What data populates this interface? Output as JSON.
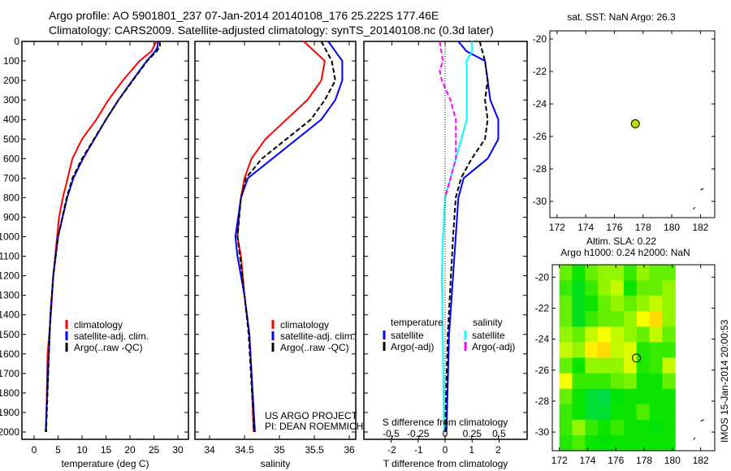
{
  "title_line1": "Argo profile: AO 5901801_237 07-Jan-2014 20140108_176 25.222S 177.46E",
  "title_line2": "Climatology: CARS2009. Satellite-adjusted climatology: synTS_20140108.nc (0.3d later)",
  "colors": {
    "clim": "#ff0000",
    "sat": "#0000ff",
    "argo": "#000000",
    "sal_sat": "#00ffff",
    "sal_argo": "#ff00ff"
  },
  "chart_data": [
    {
      "type": "line",
      "name": "temperature",
      "xlabel": "temperature (deg C)",
      "xlim": [
        -1,
        31
      ],
      "ylim": [
        2040,
        0
      ],
      "xticks": [
        0,
        5,
        10,
        15,
        20,
        25,
        30
      ],
      "yticks": [
        0,
        100,
        200,
        300,
        400,
        500,
        600,
        700,
        800,
        900,
        1000,
        1100,
        1200,
        1300,
        1400,
        1500,
        1600,
        1700,
        1800,
        1900,
        2000
      ],
      "legend": [
        "climatology",
        "satellite-adj. clim.",
        "Argo(..raw -QC)"
      ],
      "series": [
        {
          "name": "climatology",
          "color": "#ff0000",
          "depth": [
            0,
            50,
            100,
            200,
            300,
            400,
            500,
            600,
            700,
            800,
            900,
            1000,
            1200,
            1400,
            1600,
            2000
          ],
          "values": [
            25.5,
            24.5,
            22,
            18.5,
            15.5,
            13,
            10,
            8,
            7,
            6,
            5.2,
            4.8,
            4,
            3.5,
            2.8,
            2.5
          ]
        },
        {
          "name": "satellite-adj. clim.",
          "color": "#0000ff",
          "depth": [
            0,
            25,
            50,
            100,
            200,
            300,
            400,
            500,
            600,
            700,
            800,
            1000,
            1200,
            1400,
            2000
          ],
          "values": [
            25.8,
            25.8,
            25.3,
            23.5,
            20.5,
            17.6,
            15,
            12.6,
            10.2,
            8.2,
            6.9,
            5,
            4,
            3.4,
            2.4
          ]
        },
        {
          "name": "Argo(..raw -QC)",
          "color": "#000000",
          "dash": "6,3",
          "depth": [
            0,
            25,
            50,
            100,
            200,
            300,
            400,
            500,
            600,
            700,
            800,
            1000,
            1200,
            1400,
            2000
          ],
          "values": [
            26.2,
            26.3,
            25.6,
            23.6,
            20.6,
            17.6,
            15,
            12.5,
            10,
            8,
            6.8,
            5,
            4,
            3.4,
            2.5
          ]
        }
      ]
    },
    {
      "type": "line",
      "name": "salinity",
      "xlabel": "salinity",
      "xlim": [
        33.8,
        36.1
      ],
      "ylim": [
        2040,
        0
      ],
      "xticks": [
        34,
        34.5,
        35,
        35.5,
        36
      ],
      "xticklabels": [
        "34",
        "34.5",
        "35",
        "35.5",
        "36"
      ],
      "legend": [
        "climatology",
        "satellite-adj. clim.",
        "Argo(..raw -QC)"
      ],
      "annotation": [
        "US ARGO PROJECT",
        "PI: DEAN ROEMMICH"
      ],
      "series": [
        {
          "name": "climatology",
          "color": "#ff0000",
          "depth": [
            0,
            50,
            100,
            200,
            300,
            400,
            500,
            600,
            700,
            800,
            900,
            1000,
            1100,
            1300,
            1500,
            1700,
            2000
          ],
          "values": [
            35.35,
            35.5,
            35.65,
            35.6,
            35.4,
            35.1,
            34.8,
            34.6,
            34.5,
            34.45,
            34.42,
            34.4,
            34.45,
            34.5,
            34.57,
            34.6,
            34.63
          ]
        },
        {
          "name": "satellite-adj. clim.",
          "color": "#0000ff",
          "depth": [
            0,
            50,
            100,
            200,
            300,
            400,
            500,
            600,
            700,
            800,
            1000,
            1100,
            1300,
            1500,
            2000
          ],
          "values": [
            35.7,
            35.8,
            35.9,
            35.9,
            35.8,
            35.6,
            35.25,
            34.9,
            34.55,
            34.45,
            34.37,
            34.4,
            34.5,
            34.57,
            34.65
          ]
        },
        {
          "name": "Argo(..raw -QC)",
          "color": "#000000",
          "dash": "6,3",
          "depth": [
            0,
            100,
            200,
            300,
            400,
            500,
            600,
            700,
            800,
            1000,
            1200,
            1500,
            2000
          ],
          "values": [
            35.6,
            35.75,
            35.8,
            35.65,
            35.45,
            35.1,
            34.75,
            34.52,
            34.45,
            34.4,
            34.47,
            34.56,
            34.64
          ]
        }
      ]
    },
    {
      "type": "line",
      "name": "difference",
      "xlabel": "T difference from climatology",
      "xlabel2": "S difference from climatology",
      "xlim": [
        -3,
        3
      ],
      "xticks": [
        -2,
        -1,
        0,
        1,
        2
      ],
      "x2ticks": [
        -0.5,
        -0.25,
        0,
        0.25,
        0.5
      ],
      "x2ticklabels": [
        "-0.5",
        "-0.25",
        "0",
        "0.25",
        "0.5"
      ],
      "legend_t": {
        "title": "temperature",
        "items": [
          "satellite",
          "Argo(-adj)"
        ]
      },
      "legend_s": {
        "title": "salinity",
        "items": [
          "satellite",
          "Argo(-adj)"
        ]
      },
      "series": [
        {
          "name": "T satellite",
          "var": "T",
          "color": "#0000ff",
          "depth": [
            0,
            50,
            100,
            200,
            300,
            400,
            500,
            600,
            700,
            800,
            1000,
            1200,
            1500,
            2000
          ],
          "values": [
            0.5,
            0.8,
            1.5,
            1.6,
            1.7,
            2,
            2,
            1.6,
            0.7,
            0.5,
            0.4,
            0.3,
            0.15,
            0.05
          ]
        },
        {
          "name": "T Argo(-adj)",
          "var": "T",
          "color": "#000000",
          "dash": "6,3",
          "depth": [
            0,
            50,
            100,
            200,
            300,
            400,
            500,
            600,
            700,
            800,
            1000,
            1500,
            2000
          ],
          "values": [
            1.3,
            1.4,
            1.5,
            1.6,
            1.5,
            1.6,
            1.5,
            1,
            0.6,
            0.4,
            0.3,
            0.1,
            0
          ]
        },
        {
          "name": "S satellite",
          "var": "S",
          "color": "#00ffff",
          "depth": [
            0,
            50,
            100,
            200,
            300,
            400,
            500,
            600,
            700,
            800,
            1000,
            1200,
            1600,
            2000
          ],
          "values": [
            0.25,
            0.25,
            0.2,
            0.2,
            0.2,
            0.2,
            0.15,
            0.1,
            0.05,
            0,
            -0.02,
            -0.03,
            -0.02,
            -0.01
          ]
        },
        {
          "name": "S Argo(-adj)",
          "var": "S",
          "color": "#ff00ff",
          "dash": "6,3",
          "depth": [
            0,
            100,
            150,
            200,
            300,
            400,
            500,
            600,
            700,
            800
          ],
          "values": [
            -0.05,
            -0.02,
            -0.05,
            -0.03,
            0.05,
            0.1,
            0.1,
            0.1,
            0.05,
            0
          ]
        }
      ]
    },
    {
      "type": "scatter",
      "name": "sst-map",
      "title": "sat. SST: NaN Argo: 26.3",
      "xlim": [
        171.5,
        183
      ],
      "ylim": [
        -31,
        -19.5
      ],
      "xticks": [
        172,
        174,
        176,
        178,
        180,
        182
      ],
      "yticks": [
        -20,
        -22,
        -24,
        -26,
        -28,
        -30
      ],
      "point": {
        "lon": 177.46,
        "lat": -25.22,
        "color": "#b8e000"
      }
    },
    {
      "type": "heatmap",
      "name": "sla-map",
      "title": "Altim. SLA: 0.22",
      "subtitle": "Argo h1000: 0.24 h2000: NaN",
      "xlim": [
        171.5,
        183
      ],
      "ylim": [
        -31.2,
        -19.2
      ],
      "xticks": [
        172,
        174,
        176,
        178,
        180,
        182
      ],
      "yticks": [
        -20,
        -22,
        -24,
        -26,
        -28,
        -30
      ],
      "grid_lon": [
        172,
        180.2
      ],
      "grid_lat": [
        -19.2,
        -31.2
      ],
      "values": [
        [
          0.5,
          0.3,
          0.5,
          0.6,
          0.6,
          0.4,
          0.6,
          0.5,
          0.5
        ],
        [
          0.4,
          0.2,
          0.4,
          0.6,
          0.7,
          0.3,
          0.5,
          0.5,
          0.6
        ],
        [
          0.5,
          0.2,
          0.3,
          0.5,
          0.6,
          0.5,
          0.6,
          0.7,
          0.6
        ],
        [
          0.5,
          0.2,
          0.4,
          0.5,
          0.5,
          0.6,
          0.8,
          0.9,
          0.6
        ],
        [
          0.6,
          0.5,
          0.7,
          0.8,
          0.7,
          0.6,
          0.5,
          0.7,
          0.5
        ],
        [
          0.7,
          0.6,
          0.85,
          0.9,
          0.7,
          0.75,
          0.35,
          0.4,
          0.4
        ],
        [
          0.5,
          0.3,
          0.6,
          0.6,
          0.6,
          0.75,
          0.35,
          0.4,
          0.7
        ],
        [
          0.8,
          0.4,
          0.4,
          0.4,
          0.5,
          0.55,
          0.3,
          0.3,
          0.5
        ],
        [
          0.5,
          0.3,
          0.15,
          0.1,
          0.25,
          0.3,
          0.3,
          0.3,
          0.3
        ],
        [
          0.4,
          0.3,
          0.15,
          0.15,
          0.3,
          0.3,
          0.45,
          0.3,
          0.3
        ],
        [
          0.4,
          0.6,
          0.4,
          0.3,
          0.4,
          0.3,
          0.3,
          0.25,
          0.3
        ],
        [
          0.35,
          0.45,
          0.3,
          0.25,
          0.3,
          0.3,
          0.3,
          0.3,
          0.3
        ]
      ],
      "point": {
        "lon": 177.46,
        "lat": -25.22
      },
      "side_label": "IMOS 15-Jan-2014 20:00:53"
    }
  ]
}
